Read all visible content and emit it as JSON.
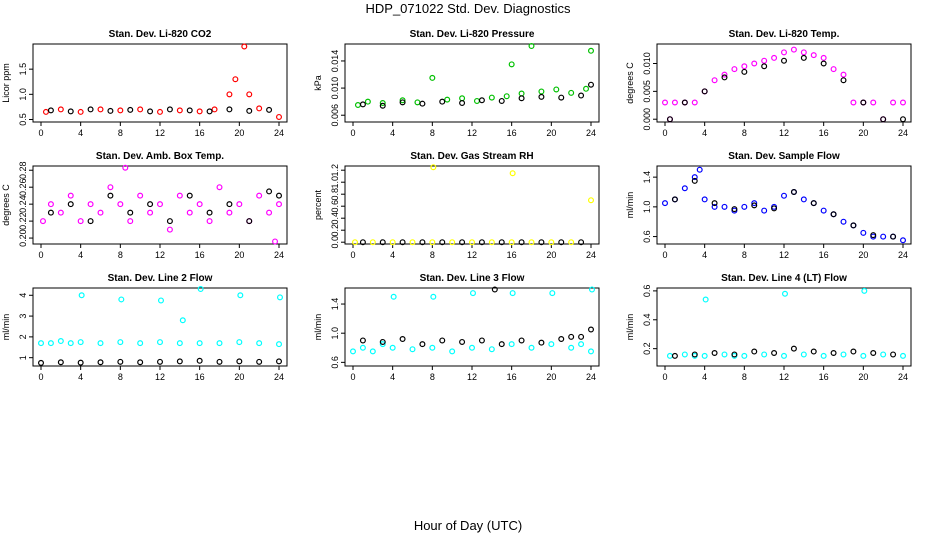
{
  "figure": {
    "title": "HDP_071022  Std. Dev. Diagnostics",
    "xlabel": "Hour of Day (UTC)"
  },
  "colors": {
    "co2": "#ff0000",
    "pressure": "#00c000",
    "temperature": "#ff00ff",
    "box_temp": "#ff00ff",
    "rh": "#ffff00",
    "sample_flow": "#0000ff",
    "line_flow": "#00ffff",
    "overlay": "#000000"
  },
  "chart_data": [
    {
      "type": "scatter",
      "title": "Stan. Dev. Li-820 CO2",
      "ylabel": "Licor ppm",
      "xlim": [
        0,
        24
      ],
      "xticks": [
        "0",
        "4",
        "8",
        "12",
        "16",
        "20",
        "24"
      ],
      "yticks": [
        {
          "value": 0.5,
          "label": "0.5"
        },
        {
          "value": 1.0,
          "label": "1.0"
        },
        {
          "value": 1.5,
          "label": "1.5"
        }
      ],
      "ylim": [
        0.45,
        2.0
      ],
      "main_color": "co2",
      "series": [
        {
          "name": "main",
          "x": [
            0.5,
            2.0,
            4.0,
            6.0,
            8.0,
            10.0,
            12.0,
            14.0,
            16.0,
            17.5,
            19.0,
            19.6,
            20.5,
            21.0,
            22.0,
            24.0
          ],
          "y": [
            0.65,
            0.7,
            0.65,
            0.7,
            0.68,
            0.7,
            0.65,
            0.68,
            0.66,
            0.7,
            1.0,
            1.3,
            1.95,
            1.0,
            0.72,
            0.55
          ]
        },
        {
          "name": "overlay",
          "x": [
            1,
            3,
            5,
            7,
            9,
            11,
            13,
            15,
            17,
            19,
            21,
            23
          ],
          "y": [
            0.68,
            0.66,
            0.7,
            0.67,
            0.69,
            0.66,
            0.7,
            0.68,
            0.66,
            0.7,
            0.67,
            0.69
          ]
        }
      ]
    },
    {
      "type": "scatter",
      "title": "Stan. Dev. Li-820 Pressure",
      "ylabel": "kPa",
      "xlim": [
        0,
        24
      ],
      "xticks": [
        "0",
        "4",
        "8",
        "12",
        "16",
        "20",
        "24"
      ],
      "yticks": [
        {
          "value": 0.006,
          "label": "0.006"
        },
        {
          "value": 0.01,
          "label": "0.010"
        },
        {
          "value": 0.014,
          "label": "0.014"
        }
      ],
      "ylim": [
        0.005,
        0.0165
      ],
      "main_color": "pressure",
      "series": [
        {
          "name": "main",
          "x": [
            0.5,
            1.5,
            3.0,
            5.0,
            6.5,
            8.0,
            9.5,
            11.0,
            12.5,
            14.0,
            15.5,
            16.0,
            17.0,
            18.0,
            19.0,
            20.5,
            22.0,
            23.5,
            24.0
          ],
          "y": [
            0.0075,
            0.008,
            0.0078,
            0.0082,
            0.0079,
            0.0115,
            0.0083,
            0.0085,
            0.0081,
            0.0086,
            0.0088,
            0.0135,
            0.0092,
            0.0162,
            0.0095,
            0.0098,
            0.0093,
            0.0099,
            0.0155
          ]
        },
        {
          "name": "overlay",
          "x": [
            1,
            3,
            5,
            7,
            9,
            11,
            13,
            15,
            17,
            19,
            21,
            23,
            24
          ],
          "y": [
            0.0076,
            0.0074,
            0.0079,
            0.0077,
            0.008,
            0.0078,
            0.0082,
            0.0081,
            0.0085,
            0.0087,
            0.0086,
            0.0089,
            0.0105
          ]
        }
      ]
    },
    {
      "type": "scatter",
      "title": "Stan. Dev. Li-820 Temp.",
      "ylabel": "degrees C",
      "xlim": [
        0,
        24
      ],
      "xticks": [
        "0",
        "4",
        "8",
        "12",
        "16",
        "20",
        "24"
      ],
      "yticks": [
        {
          "value": 0,
          "label": "0.000"
        },
        {
          "value": 0.005,
          "label": "0.005"
        },
        {
          "value": 0.01,
          "label": "0.010"
        }
      ],
      "ylim": [
        -0.0005,
        0.0135
      ],
      "main_color": "temperature",
      "series": [
        {
          "name": "main",
          "x": [
            0.0,
            0.5,
            1.0,
            2.0,
            3.0,
            4.0,
            5.0,
            6.0,
            7.0,
            8.0,
            9.0,
            10.0,
            11.0,
            12.0,
            13.0,
            14.0,
            15.0,
            16.0,
            17.0,
            18.0,
            19.0,
            20.0,
            21.0,
            22.0,
            23.0,
            24.0
          ],
          "y": [
            0.003,
            0.0,
            0.003,
            0.003,
            0.003,
            0.005,
            0.007,
            0.008,
            0.009,
            0.0095,
            0.01,
            0.0105,
            0.011,
            0.012,
            0.0125,
            0.012,
            0.0115,
            0.011,
            0.009,
            0.008,
            0.003,
            0.003,
            0.003,
            0.0,
            0.003,
            0.003
          ]
        },
        {
          "name": "overlay",
          "x": [
            0.5,
            2,
            4,
            6,
            8,
            10,
            12,
            14,
            16,
            18,
            20,
            22,
            24
          ],
          "y": [
            0.0,
            0.003,
            0.005,
            0.0075,
            0.0085,
            0.0095,
            0.0105,
            0.011,
            0.01,
            0.007,
            0.003,
            0.0,
            0.0
          ]
        }
      ]
    },
    {
      "type": "scatter",
      "title": "Stan. Dev. Amb. Box Temp.",
      "ylabel": "degrees C",
      "xlim": [
        0,
        24
      ],
      "xticks": [
        "0",
        "4",
        "8",
        "12",
        "16",
        "20",
        "24"
      ],
      "yticks": [
        {
          "value": 0.2,
          "label": "0.20"
        },
        {
          "value": 0.22,
          "label": "0.22"
        },
        {
          "value": 0.24,
          "label": "0.24"
        },
        {
          "value": 0.26,
          "label": "0.26"
        },
        {
          "value": 0.28,
          "label": "0.28"
        }
      ],
      "ylim": [
        0.193,
        0.285
      ],
      "main_color": "box_temp",
      "series": [
        {
          "name": "main",
          "x": [
            0.2,
            1.0,
            2.0,
            3.0,
            4.0,
            5.0,
            6.0,
            7.0,
            8.0,
            8.5,
            9.0,
            10.0,
            11.0,
            12.0,
            13.0,
            14.0,
            15.0,
            16.0,
            17.0,
            18.0,
            19.0,
            20.0,
            21.0,
            22.0,
            23.0,
            23.6,
            24.0
          ],
          "y": [
            0.22,
            0.24,
            0.23,
            0.25,
            0.22,
            0.24,
            0.23,
            0.26,
            0.24,
            0.283,
            0.22,
            0.25,
            0.23,
            0.24,
            0.21,
            0.25,
            0.23,
            0.24,
            0.22,
            0.26,
            0.23,
            0.24,
            0.22,
            0.25,
            0.23,
            0.196,
            0.24
          ]
        },
        {
          "name": "overlay",
          "x": [
            1,
            3,
            5,
            7,
            9,
            11,
            13,
            15,
            17,
            19,
            21,
            23,
            24
          ],
          "y": [
            0.23,
            0.24,
            0.22,
            0.25,
            0.23,
            0.24,
            0.22,
            0.25,
            0.23,
            0.24,
            0.22,
            0.255,
            0.25
          ]
        }
      ]
    },
    {
      "type": "scatter",
      "title": "Stan. Dev. Gas Stream RH",
      "ylabel": "percent",
      "xlim": [
        0,
        24
      ],
      "xticks": [
        "0",
        "4",
        "8",
        "12",
        "16",
        "20",
        "24"
      ],
      "yticks": [
        {
          "value": 0,
          "label": "0.0"
        },
        {
          "value": 0.2,
          "label": "0.2"
        },
        {
          "value": 0.4,
          "label": "0.4"
        },
        {
          "value": 0.6,
          "label": "0.6"
        },
        {
          "value": 0.8,
          "label": "0.8"
        },
        {
          "value": 1.0,
          "label": "1.0"
        },
        {
          "value": 1.2,
          "label": "1.2"
        }
      ],
      "ylim": [
        -0.03,
        1.27
      ],
      "main_color": "rh",
      "series": [
        {
          "name": "main",
          "x": [
            0.2,
            2,
            4,
            6,
            8,
            8.1,
            10,
            12,
            14,
            16,
            16.1,
            18,
            20,
            22,
            24
          ],
          "y": [
            0.0,
            0.0,
            0.0,
            0.0,
            0.0,
            1.25,
            0.0,
            0.0,
            0.0,
            0.0,
            1.15,
            0.0,
            0.0,
            0.0,
            0.7
          ]
        },
        {
          "name": "overlay",
          "x": [
            1,
            3,
            5,
            7,
            9,
            11,
            13,
            15,
            17,
            19,
            21,
            23
          ],
          "y": [
            0.0,
            0.0,
            0.0,
            0.0,
            0.0,
            0.0,
            0.0,
            0.0,
            0.0,
            0.0,
            0.0,
            0.0
          ]
        }
      ]
    },
    {
      "type": "scatter",
      "title": "Stan. Dev. Sample Flow",
      "ylabel": "ml/min",
      "xlim": [
        0,
        24
      ],
      "xticks": [
        "0",
        "4",
        "8",
        "12",
        "16",
        "20",
        "24"
      ],
      "yticks": [
        {
          "value": 0.6,
          "label": "0.6"
        },
        {
          "value": 1.0,
          "label": "1.0"
        },
        {
          "value": 1.4,
          "label": "1.4"
        }
      ],
      "ylim": [
        0.5,
        1.55
      ],
      "main_color": "sample_flow",
      "series": [
        {
          "name": "main",
          "x": [
            0.0,
            1.0,
            2.0,
            3.0,
            3.5,
            4.0,
            5.0,
            6.0,
            7.0,
            8.0,
            9.0,
            10.0,
            11.0,
            12.0,
            13.0,
            14.0,
            15.0,
            16.0,
            17.0,
            18.0,
            19.0,
            20.0,
            21.0,
            22.0,
            23.0,
            24.0
          ],
          "y": [
            1.05,
            1.1,
            1.25,
            1.4,
            1.5,
            1.1,
            1.0,
            1.0,
            0.95,
            1.0,
            1.05,
            0.95,
            1.0,
            1.15,
            1.2,
            1.1,
            1.05,
            0.95,
            0.9,
            0.8,
            0.75,
            0.65,
            0.6,
            0.6,
            0.6,
            0.55
          ]
        },
        {
          "name": "overlay",
          "x": [
            1,
            3,
            5,
            7,
            9,
            11,
            13,
            15,
            17,
            19,
            21,
            23
          ],
          "y": [
            1.1,
            1.35,
            1.05,
            0.97,
            1.02,
            0.98,
            1.2,
            1.05,
            0.9,
            0.75,
            0.62,
            0.6
          ]
        }
      ]
    },
    {
      "type": "scatter",
      "title": "Stan. Dev. Line 2 Flow",
      "ylabel": "ml/min",
      "xlim": [
        0,
        24
      ],
      "xticks": [
        "0",
        "4",
        "8",
        "12",
        "16",
        "20",
        "24"
      ],
      "yticks": [
        {
          "value": 1,
          "label": "1"
        },
        {
          "value": 2,
          "label": "2"
        },
        {
          "value": 3,
          "label": "3"
        },
        {
          "value": 4,
          "label": "4"
        }
      ],
      "ylim": [
        0.6,
        4.35
      ],
      "main_color": "line_flow",
      "series": [
        {
          "name": "main",
          "x": [
            0.0,
            1.0,
            2.0,
            3.0,
            4.0,
            4.1,
            6.0,
            8.0,
            8.1,
            10.0,
            12.0,
            12.1,
            14.0,
            14.3,
            16.0,
            16.1,
            18.0,
            20.0,
            20.1,
            22.0,
            24.0,
            24.1
          ],
          "y": [
            1.7,
            1.7,
            1.8,
            1.7,
            1.75,
            4.0,
            1.7,
            1.75,
            3.8,
            1.7,
            1.75,
            3.75,
            1.7,
            2.8,
            1.7,
            4.3,
            1.7,
            1.75,
            4.0,
            1.7,
            1.65,
            3.9
          ]
        },
        {
          "name": "overlay",
          "x": [
            0,
            2,
            4,
            6,
            8,
            10,
            12,
            14,
            16,
            18,
            20,
            22,
            24
          ],
          "y": [
            0.75,
            0.78,
            0.76,
            0.78,
            0.8,
            0.78,
            0.8,
            0.82,
            0.85,
            0.8,
            0.82,
            0.8,
            0.82
          ]
        }
      ]
    },
    {
      "type": "scatter",
      "title": "Stan. Dev. Line 3 Flow",
      "ylabel": "ml/min",
      "xlim": [
        0,
        24
      ],
      "xticks": [
        "0",
        "4",
        "8",
        "12",
        "16",
        "20",
        "24"
      ],
      "yticks": [
        {
          "value": 0.6,
          "label": "0.6"
        },
        {
          "value": 1.0,
          "label": "1.0"
        },
        {
          "value": 1.4,
          "label": "1.4"
        }
      ],
      "ylim": [
        0.55,
        1.62
      ],
      "main_color": "line_flow",
      "series": [
        {
          "name": "main",
          "x": [
            0.0,
            1.0,
            2.0,
            3.0,
            4.0,
            4.1,
            6.0,
            8.0,
            8.1,
            10.0,
            12.0,
            12.1,
            14.0,
            16.0,
            16.1,
            18.0,
            20.0,
            20.1,
            22.0,
            23.0,
            24.0,
            24.1
          ],
          "y": [
            0.75,
            0.8,
            0.75,
            0.85,
            0.8,
            1.5,
            0.78,
            0.8,
            1.5,
            0.75,
            0.8,
            1.55,
            0.78,
            0.85,
            1.55,
            0.8,
            0.85,
            1.55,
            0.8,
            0.85,
            0.75,
            1.6
          ]
        },
        {
          "name": "overlay",
          "x": [
            1,
            3,
            5,
            7,
            9,
            11,
            13,
            14.3,
            15,
            17,
            19,
            21,
            22,
            23,
            24
          ],
          "y": [
            0.9,
            0.88,
            0.92,
            0.85,
            0.9,
            0.88,
            0.9,
            1.6,
            0.85,
            0.9,
            0.87,
            0.92,
            0.95,
            0.95,
            1.05
          ]
        }
      ]
    },
    {
      "type": "scatter",
      "title": "Stan. Dev. Line 4 (LT) Flow",
      "ylabel": "ml/min",
      "xlim": [
        0,
        24
      ],
      "xticks": [
        "0",
        "4",
        "8",
        "12",
        "16",
        "20",
        "24"
      ],
      "yticks": [
        {
          "value": 0.2,
          "label": "0.2"
        },
        {
          "value": 0.4,
          "label": "0.4"
        },
        {
          "value": 0.6,
          "label": "0.6"
        }
      ],
      "ylim": [
        0.08,
        0.62
      ],
      "main_color": "line_flow",
      "series": [
        {
          "name": "main",
          "x": [
            0.5,
            2,
            3,
            4,
            4.1,
            6,
            7,
            8,
            10,
            12,
            12.1,
            14,
            16,
            18,
            20,
            20.1,
            22,
            24
          ],
          "y": [
            0.15,
            0.16,
            0.15,
            0.15,
            0.54,
            0.16,
            0.15,
            0.15,
            0.16,
            0.15,
            0.58,
            0.16,
            0.15,
            0.16,
            0.15,
            0.6,
            0.16,
            0.15
          ]
        },
        {
          "name": "overlay",
          "x": [
            1,
            3,
            5,
            7,
            9,
            11,
            13,
            15,
            17,
            19,
            21,
            23
          ],
          "y": [
            0.15,
            0.16,
            0.17,
            0.16,
            0.18,
            0.17,
            0.2,
            0.18,
            0.17,
            0.18,
            0.17,
            0.16
          ]
        }
      ]
    }
  ]
}
